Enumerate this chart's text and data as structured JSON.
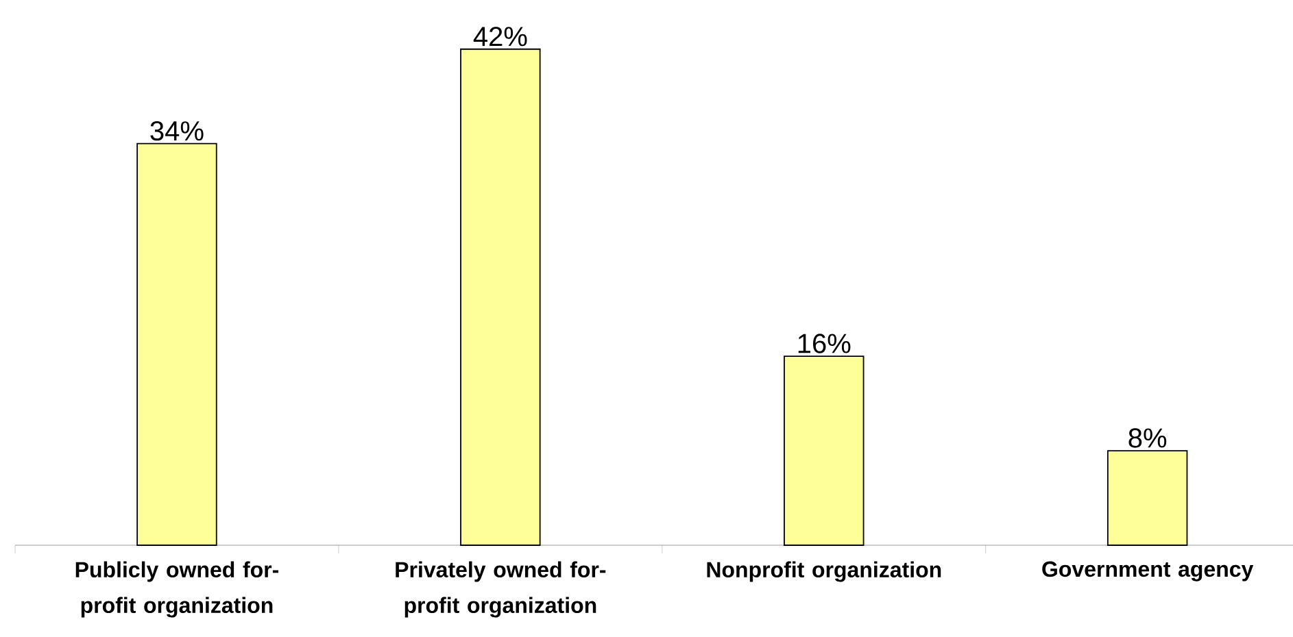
{
  "chart_data": {
    "type": "bar",
    "categories": [
      "Publicly owned for-profit organization",
      "Privately owned for-profit organization",
      "Nonprofit organization",
      "Government agency"
    ],
    "values": [
      34,
      42,
      16,
      8
    ],
    "value_labels": [
      "34%",
      "42%",
      "16%",
      "8%"
    ],
    "color": "#ffff99"
  }
}
